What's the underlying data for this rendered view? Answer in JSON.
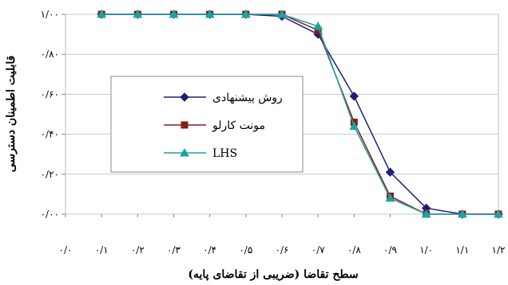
{
  "chart_data": {
    "type": "line",
    "xlabel": "سطح تقاضا (ضریبی از تقاضای پایه)",
    "ylabel": "قابلیت اطمینان دسترسی",
    "x_tick_labels": [
      "۰/۰",
      "۰/۱",
      "۰/۲",
      "۰/۳",
      "۰/۴",
      "۰/۵",
      "۰/۶",
      "۰/۷",
      "۰/۸",
      "۰/۹",
      "۱/۰",
      "۱/۱",
      "۱/۲"
    ],
    "y_tick_labels": [
      "۰/۰۰",
      "۰/۲۰",
      "۰/۴۰",
      "۰/۶۰",
      "۰/۸۰",
      "۱/۰۰"
    ],
    "x_ticks": [
      0.0,
      0.1,
      0.2,
      0.3,
      0.4,
      0.5,
      0.6,
      0.7,
      0.8,
      0.9,
      1.0,
      1.1,
      1.2
    ],
    "y_ticks": [
      0.0,
      0.2,
      0.4,
      0.6,
      0.8,
      1.0
    ],
    "xlim": [
      0.0,
      1.2
    ],
    "ylim": [
      0.0,
      1.0
    ],
    "grid": "horizontal",
    "legend_position": "center-left",
    "x": [
      0.1,
      0.2,
      0.3,
      0.4,
      0.5,
      0.6,
      0.7,
      0.8,
      0.9,
      1.0,
      1.1,
      1.2
    ],
    "series": [
      {
        "name": "روش پیشنهادی",
        "marker": "diamond",
        "color": "#1f1f7a",
        "values": [
          1.0,
          1.0,
          1.0,
          1.0,
          1.0,
          0.99,
          0.9,
          0.59,
          0.21,
          0.03,
          0.0,
          0.0
        ]
      },
      {
        "name": "مونت کارلو",
        "marker": "square",
        "color": "#8b1a1a",
        "values": [
          1.0,
          1.0,
          1.0,
          1.0,
          1.0,
          1.0,
          0.92,
          0.46,
          0.09,
          0.0,
          0.0,
          0.0
        ]
      },
      {
        "name": "LHS",
        "marker": "triangle",
        "color": "#1aa3a3",
        "values": [
          1.0,
          1.0,
          1.0,
          1.0,
          1.0,
          1.0,
          0.94,
          0.44,
          0.08,
          0.0,
          0.0,
          0.0
        ]
      }
    ]
  }
}
